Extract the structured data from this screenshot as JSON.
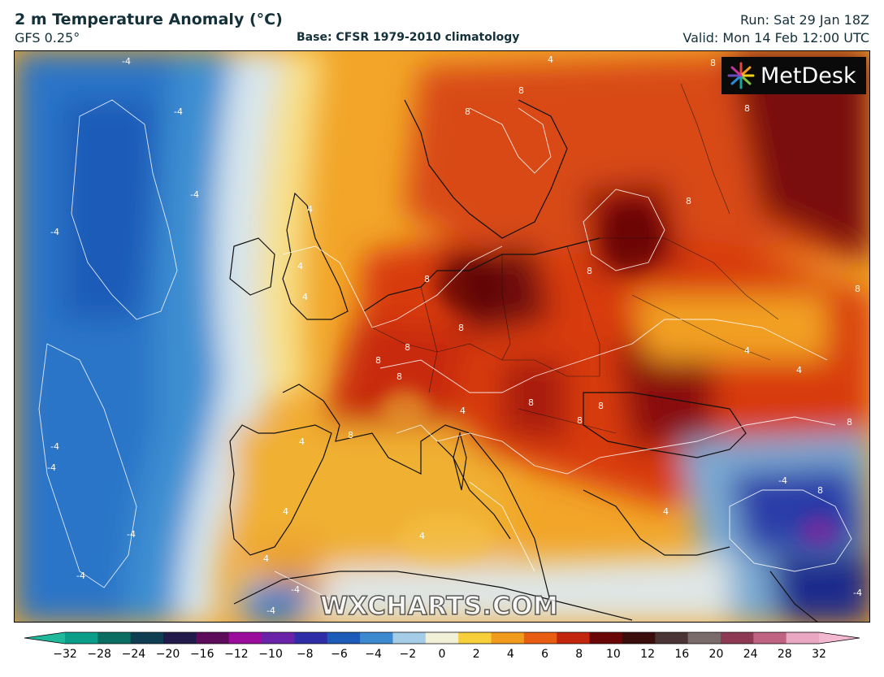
{
  "header": {
    "title": "2 m Temperature Anomaly (°C)",
    "model": "GFS 0.25°",
    "base": "Base: CFSR 1979-2010 climatology",
    "run": "Run: Sat 29 Jan 18Z",
    "valid": "Valid: Mon 14 Feb 12:00 UTC"
  },
  "logo": {
    "text": "MetDesk",
    "icon": "metdesk-star-icon"
  },
  "watermark": "WXCHARTS.COM",
  "contour_labels": {
    "neg": "-4",
    "pos4": "4",
    "pos8": "8"
  },
  "colorbar": {
    "ticks": [
      "−32",
      "−28",
      "−24",
      "−20",
      "−16",
      "−12",
      "−10",
      "−8",
      "−6",
      "−4",
      "−2",
      "0",
      "2",
      "4",
      "6",
      "8",
      "10",
      "12",
      "16",
      "20",
      "24",
      "28",
      "32"
    ],
    "colors": [
      "#0a9e8a",
      "#0b6e63",
      "#0f3d52",
      "#211a4a",
      "#5c0c5a",
      "#9b0c9c",
      "#6a23a8",
      "#2f2ea8",
      "#1c5bb8",
      "#3b8ad0",
      "#a6cde8",
      "#f3f0d8",
      "#f7cf3a",
      "#f09a1e",
      "#e85d12",
      "#c3260c",
      "#6a0606",
      "#3b0c0c",
      "#4a3434",
      "#7a6b6b",
      "#8e3a55",
      "#c06282",
      "#e9a7c2"
    ],
    "left_arrow_color": "#1fb89b",
    "right_arrow_color": "#f2b8d0"
  }
}
